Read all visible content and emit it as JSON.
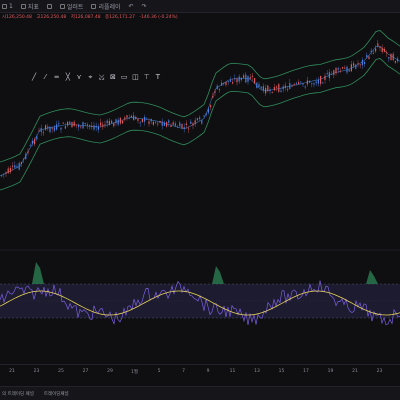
{
  "topbar": {
    "items": [
      {
        "label": "1",
        "icon": "candle-icon"
      },
      {
        "label": "지표",
        "icon": "indicator-icon"
      },
      {
        "label": "",
        "icon": "layout-icon"
      },
      {
        "label": "얼러트",
        "icon": "alert-icon"
      },
      {
        "label": "리플레이",
        "icon": "replay-icon"
      },
      {
        "label": "",
        "icon": "undo-icon"
      },
      {
        "label": "",
        "icon": "redo-icon"
      }
    ]
  },
  "ohlc": {
    "open": "시126,250.48",
    "high": "고126,250.48",
    "low": "저126,087.48",
    "close": "종126,171.27",
    "change": "-146.36 (-0.24%)"
  },
  "drawing_tools": [
    {
      "glyph": "╱",
      "icon": "trend-line-icon"
    },
    {
      "glyph": "⁄",
      "icon": "ray-icon"
    },
    {
      "glyph": "═",
      "icon": "parallel-channel-icon"
    },
    {
      "glyph": "╳",
      "icon": "pitchfork-icon"
    },
    {
      "glyph": "⋎",
      "icon": "pattern-icon"
    },
    {
      "glyph": "⌖",
      "icon": "brush-icon"
    },
    {
      "glyph": "⤩",
      "icon": "arrow-icon"
    },
    {
      "glyph": "⊠",
      "icon": "rectangle-icon"
    },
    {
      "glyph": "▭",
      "icon": "frame-icon"
    },
    {
      "glyph": "◫",
      "icon": "box-icon"
    },
    {
      "glyph": "⊤",
      "icon": "text-icon"
    },
    {
      "glyph": "T",
      "icon": "label-icon"
    }
  ],
  "xaxis": {
    "ticks": [
      {
        "label": "21",
        "pos": 0
      },
      {
        "label": "23",
        "pos": 1
      },
      {
        "label": "25",
        "pos": 2
      },
      {
        "label": "27",
        "pos": 3
      },
      {
        "label": "29",
        "pos": 4
      },
      {
        "label": "1월",
        "pos": 5
      },
      {
        "label": "5",
        "pos": 6
      },
      {
        "label": "7",
        "pos": 7
      },
      {
        "label": "9",
        "pos": 8
      },
      {
        "label": "11",
        "pos": 9
      },
      {
        "label": "13",
        "pos": 10
      },
      {
        "label": "15",
        "pos": 11
      },
      {
        "label": "17",
        "pos": 12
      },
      {
        "label": "19",
        "pos": 13
      },
      {
        "label": "21",
        "pos": 14
      },
      {
        "label": "23",
        "pos": 15
      }
    ]
  },
  "bottombar": {
    "items": [
      "의 트레이딩 패널",
      "트레이딩패널"
    ]
  },
  "colors": {
    "up": "#e05a5a",
    "down": "#4a7ee0",
    "band": "#2f8c5a",
    "rsi": "#7a5fe0",
    "rsi_ma": "#e8d35a",
    "rsi_fill": "#2a2748"
  }
}
